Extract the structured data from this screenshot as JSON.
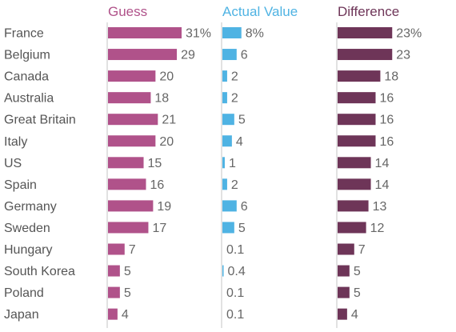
{
  "chart_data": {
    "type": "bar",
    "categories": [
      "France",
      "Belgium",
      "Canada",
      "Australia",
      "Great Britain",
      "Italy",
      "US",
      "Spain",
      "Germany",
      "Sweden",
      "Hungary",
      "South Korea",
      "Poland",
      "Japan"
    ],
    "series": [
      {
        "name": "Guess",
        "color": "#b0528a",
        "values": [
          31,
          29,
          20,
          18,
          21,
          20,
          15,
          16,
          19,
          17,
          7,
          5,
          5,
          4
        ],
        "labels": [
          "31%",
          "29",
          "20",
          "18",
          "21",
          "20",
          "15",
          "16",
          "19",
          "17",
          "7",
          "5",
          "5",
          "4"
        ]
      },
      {
        "name": "Actual Value",
        "color": "#4fb3e3",
        "values": [
          8,
          6,
          2,
          2,
          5,
          4,
          1,
          2,
          6,
          5,
          0.1,
          0.4,
          0.1,
          0.1
        ],
        "labels": [
          "8%",
          "6",
          "2",
          "2",
          "5",
          "4",
          "1",
          "2",
          "6",
          "5",
          "0.1",
          "0.4",
          "0.1",
          "0.1"
        ]
      },
      {
        "name": "Difference",
        "color": "#6e3558",
        "values": [
          23,
          23,
          18,
          16,
          16,
          16,
          14,
          14,
          13,
          12,
          7,
          5,
          5,
          4
        ],
        "labels": [
          "23%",
          "23",
          "18",
          "16",
          "16",
          "16",
          "14",
          "14",
          "13",
          "12",
          "7",
          "5",
          "5",
          "4"
        ]
      }
    ],
    "xlim": [
      0,
      31
    ],
    "grid": false,
    "legend": "top"
  }
}
